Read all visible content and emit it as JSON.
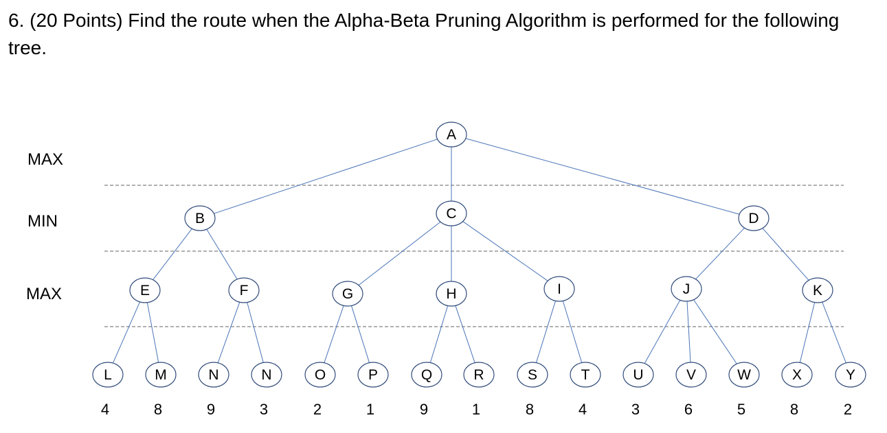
{
  "question": {
    "text": "6. (20 Points) Find the route when the Alpha-Beta Pruning Algorithm is performed for the following tree."
  },
  "levels": [
    {
      "label": "MAX"
    },
    {
      "label": "MIN"
    },
    {
      "label": "MAX"
    }
  ],
  "tree": {
    "nodes": [
      {
        "id": "A",
        "label": "A",
        "depth": 0
      },
      {
        "id": "B",
        "label": "B",
        "depth": 1
      },
      {
        "id": "C",
        "label": "C",
        "depth": 1
      },
      {
        "id": "D",
        "label": "D",
        "depth": 1
      },
      {
        "id": "E",
        "label": "E",
        "depth": 2
      },
      {
        "id": "F",
        "label": "F",
        "depth": 2
      },
      {
        "id": "G",
        "label": "G",
        "depth": 2
      },
      {
        "id": "H",
        "label": "H",
        "depth": 2
      },
      {
        "id": "I",
        "label": "I",
        "depth": 2
      },
      {
        "id": "J",
        "label": "J",
        "depth": 2
      },
      {
        "id": "K",
        "label": "K",
        "depth": 2
      },
      {
        "id": "L",
        "label": "L",
        "depth": 3,
        "value": "4"
      },
      {
        "id": "M",
        "label": "M",
        "depth": 3,
        "value": "8"
      },
      {
        "id": "N1",
        "label": "N",
        "depth": 3,
        "value": "9"
      },
      {
        "id": "N2",
        "label": "N",
        "depth": 3,
        "value": "3"
      },
      {
        "id": "O",
        "label": "O",
        "depth": 3,
        "value": "2"
      },
      {
        "id": "P",
        "label": "P",
        "depth": 3,
        "value": "1"
      },
      {
        "id": "Q",
        "label": "Q",
        "depth": 3,
        "value": "9"
      },
      {
        "id": "R",
        "label": "R",
        "depth": 3,
        "value": "1"
      },
      {
        "id": "S",
        "label": "S",
        "depth": 3,
        "value": "8"
      },
      {
        "id": "T",
        "label": "T",
        "depth": 3,
        "value": "4"
      },
      {
        "id": "U",
        "label": "U",
        "depth": 3,
        "value": "3"
      },
      {
        "id": "V",
        "label": "V",
        "depth": 3,
        "value": "6"
      },
      {
        "id": "W",
        "label": "W",
        "depth": 3,
        "value": "5"
      },
      {
        "id": "X",
        "label": "X",
        "depth": 3,
        "value": "8"
      },
      {
        "id": "Y",
        "label": "Y",
        "depth": 3,
        "value": "2"
      }
    ],
    "edges": [
      [
        "A",
        "B"
      ],
      [
        "A",
        "C"
      ],
      [
        "A",
        "D"
      ],
      [
        "B",
        "E"
      ],
      [
        "B",
        "F"
      ],
      [
        "C",
        "G"
      ],
      [
        "C",
        "H"
      ],
      [
        "C",
        "I"
      ],
      [
        "D",
        "J"
      ],
      [
        "D",
        "K"
      ],
      [
        "E",
        "L"
      ],
      [
        "E",
        "M"
      ],
      [
        "F",
        "N1"
      ],
      [
        "F",
        "N2"
      ],
      [
        "G",
        "O"
      ],
      [
        "G",
        "P"
      ],
      [
        "H",
        "Q"
      ],
      [
        "H",
        "R"
      ],
      [
        "I",
        "S"
      ],
      [
        "I",
        "T"
      ],
      [
        "J",
        "U"
      ],
      [
        "J",
        "V"
      ],
      [
        "J",
        "W"
      ],
      [
        "K",
        "X"
      ],
      [
        "K",
        "Y"
      ]
    ]
  },
  "colors": {
    "edge": "#4a74b8",
    "node_border": "#2f4a7a",
    "separator": "#808080",
    "text": "#000000"
  }
}
